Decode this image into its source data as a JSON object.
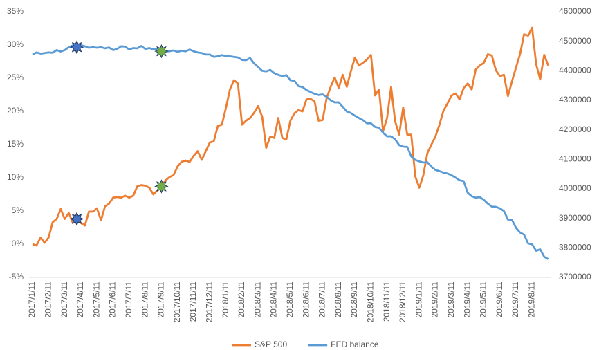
{
  "chart_data": {
    "type": "line",
    "categories": [
      "2017/1/11",
      null,
      null,
      null,
      "2017/2/11",
      null,
      null,
      null,
      "2017/3/11",
      null,
      null,
      null,
      "2017/4/11",
      null,
      null,
      null,
      "2017/5/11",
      null,
      null,
      null,
      "2017/6/11",
      null,
      null,
      null,
      "2017/7/11",
      null,
      null,
      null,
      "2017/8/11",
      null,
      null,
      null,
      "2017/9/11",
      null,
      null,
      null,
      "2017/10/11",
      null,
      null,
      null,
      "2017/11/11",
      null,
      null,
      null,
      "2017/12/11",
      null,
      null,
      null,
      "2018/1/11",
      null,
      null,
      null,
      "2018/2/11",
      null,
      null,
      null,
      "2018/3/11",
      null,
      null,
      null,
      "2018/4/11",
      null,
      null,
      null,
      "2018/5/11",
      null,
      null,
      null,
      "2018/6/11",
      null,
      null,
      null,
      "2018/7/11",
      null,
      null,
      null,
      "2018/8/11",
      null,
      null,
      null,
      "2018/9/11",
      null,
      null,
      null,
      "2018/10/11",
      null,
      null,
      null,
      "2018/11/11",
      null,
      null,
      null,
      "2018/12/11",
      null,
      null,
      null,
      "2019/1/11",
      null,
      null,
      null,
      "2019/2/11",
      null,
      null,
      null,
      "2019/3/11",
      null,
      null,
      null,
      "2019/4/11",
      null,
      null,
      null,
      "2019/5/11",
      null,
      null,
      null,
      "2019/6/11",
      null,
      null,
      null,
      "2019/7/11",
      null,
      null,
      null,
      "2019/8/11",
      null,
      null,
      null,
      null
    ],
    "series": [
      {
        "name": "S&P 500",
        "color": "#ed7d31",
        "axis": "y",
        "values": [
          0,
          -0.2,
          1,
          0.2,
          1,
          3.3,
          3.8,
          5.3,
          3.8,
          4.7,
          3.2,
          3.8,
          3.2,
          2.8,
          4.9,
          4.9,
          5.4,
          3.6,
          5.7,
          6.1,
          7,
          7.1,
          7,
          7.3,
          7,
          7.3,
          8.7,
          8.9,
          8.8,
          8.5,
          7.5,
          8.1,
          8.7,
          9.6,
          10.1,
          10.4,
          11.7,
          12.4,
          12.6,
          12.4,
          13.3,
          14,
          12.7,
          14,
          15.3,
          15.5,
          17.8,
          18,
          20.5,
          23.3,
          24.7,
          24.2,
          18,
          18.6,
          19,
          19.8,
          20.8,
          19.2,
          14.5,
          16.2,
          16,
          19,
          16,
          15.8,
          18.6,
          19.7,
          20.2,
          20,
          21.8,
          21.9,
          21.5,
          18.6,
          18.7,
          22,
          23.7,
          25.1,
          23.5,
          25.5,
          23.7,
          26,
          28.1,
          26.9,
          27.3,
          27.8,
          28.5,
          22.4,
          23.3,
          17,
          19,
          23.7,
          18.5,
          16.5,
          20.6,
          16.5,
          16.5,
          10.2,
          8.5,
          10.4,
          13.7,
          15,
          16.2,
          18,
          20.1,
          21.2,
          22.4,
          22.7,
          21.8,
          23.5,
          24.2,
          23.3,
          26.3,
          26.9,
          27.3,
          28.6,
          28.4,
          26.2,
          25.3,
          25.5,
          22.3,
          24.5,
          26.6,
          28.6,
          31.6,
          31.4,
          32.6,
          27.1,
          24.8,
          28.5,
          26.9
        ]
      },
      {
        "name": "FED balance",
        "color": "#5b9bd5",
        "axis": "y2",
        "values": [
          4455000,
          4462000,
          4458000,
          4460000,
          4462000,
          4461000,
          4470000,
          4465000,
          4470000,
          4480000,
          4486000,
          4480000,
          4487000,
          4483000,
          4478000,
          4480000,
          4478000,
          4480000,
          4476000,
          4479000,
          4470000,
          4474000,
          4483000,
          4482000,
          4472000,
          4477000,
          4476000,
          4484000,
          4474000,
          4477000,
          4472000,
          4475000,
          4466000,
          4466000,
          4466000,
          4469000,
          4464000,
          4468000,
          4466000,
          4472000,
          4466000,
          4462000,
          4460000,
          4455000,
          4455000,
          4447000,
          4449000,
          4453000,
          4450000,
          4449000,
          4447000,
          4445000,
          4437000,
          4436000,
          4443000,
          4425000,
          4413000,
          4400000,
          4398000,
          4403000,
          4392000,
          4386000,
          4382000,
          4385000,
          4368000,
          4366000,
          4348000,
          4345000,
          4335000,
          4328000,
          4322000,
          4318000,
          4320000,
          4312000,
          4300000,
          4293000,
          4293000,
          4278000,
          4262000,
          4257000,
          4248000,
          4240000,
          4233000,
          4222000,
          4222000,
          4210000,
          4207000,
          4190000,
          4178000,
          4178000,
          4168000,
          4148000,
          4143000,
          4142000,
          4110000,
          4098000,
          4093000,
          4089000,
          4090000,
          4075000,
          4064000,
          4060000,
          4055000,
          4052000,
          4046000,
          4038000,
          4029000,
          4026000,
          3987000,
          3975000,
          3970000,
          3972000,
          3963000,
          3950000,
          3940000,
          3939000,
          3934000,
          3925000,
          3896000,
          3895000,
          3868000,
          3852000,
          3845000,
          3815000,
          3812000,
          3790000,
          3795000,
          3770000,
          3762000
        ]
      }
    ],
    "ylim": [
      -5,
      35
    ],
    "yticks": [
      {
        "value": -5,
        "label": "-5%"
      },
      {
        "value": 0,
        "label": "0%"
      },
      {
        "value": 5,
        "label": "5%"
      },
      {
        "value": 10,
        "label": "10%"
      },
      {
        "value": 15,
        "label": "15%"
      },
      {
        "value": 20,
        "label": "20%"
      },
      {
        "value": 25,
        "label": "25%"
      },
      {
        "value": 30,
        "label": "30%"
      },
      {
        "value": 35,
        "label": "35%"
      }
    ],
    "y2lim": [
      3700000,
      4600000
    ],
    "y2ticks": [
      3700000,
      3800000,
      3900000,
      4000000,
      4100000,
      4200000,
      4300000,
      4400000,
      4500000,
      4600000
    ],
    "highlights": [
      {
        "index": 11,
        "color": "#4472c4"
      },
      {
        "index": 32,
        "color": "#70ad47"
      }
    ],
    "grid": false,
    "legend": "bottom"
  }
}
